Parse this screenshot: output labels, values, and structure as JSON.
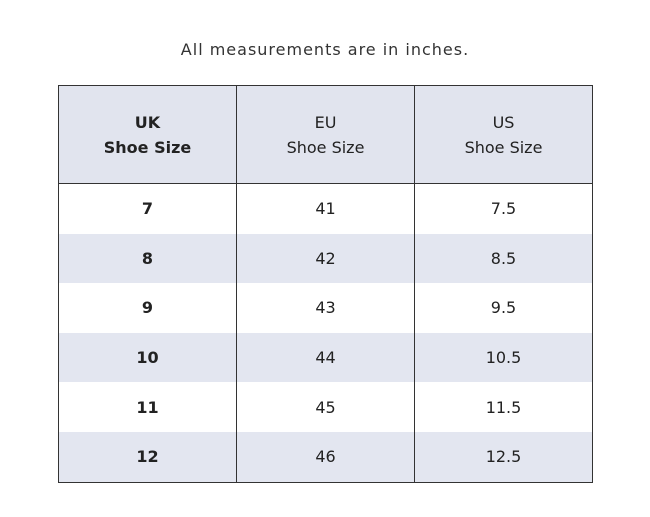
{
  "caption": "All measurements are in inches.",
  "table": {
    "header": [
      [
        "UK",
        "Shoe Size"
      ],
      [
        "EU",
        "Shoe Size"
      ],
      [
        "US",
        "Shoe Size"
      ]
    ],
    "rows": [
      [
        "7",
        "41",
        "7.5"
      ],
      [
        "8",
        "42",
        "8.5"
      ],
      [
        "9",
        "43",
        "9.5"
      ],
      [
        "10",
        "44",
        "10.5"
      ],
      [
        "11",
        "45",
        "11.5"
      ],
      [
        "12",
        "46",
        "12.5"
      ]
    ]
  }
}
